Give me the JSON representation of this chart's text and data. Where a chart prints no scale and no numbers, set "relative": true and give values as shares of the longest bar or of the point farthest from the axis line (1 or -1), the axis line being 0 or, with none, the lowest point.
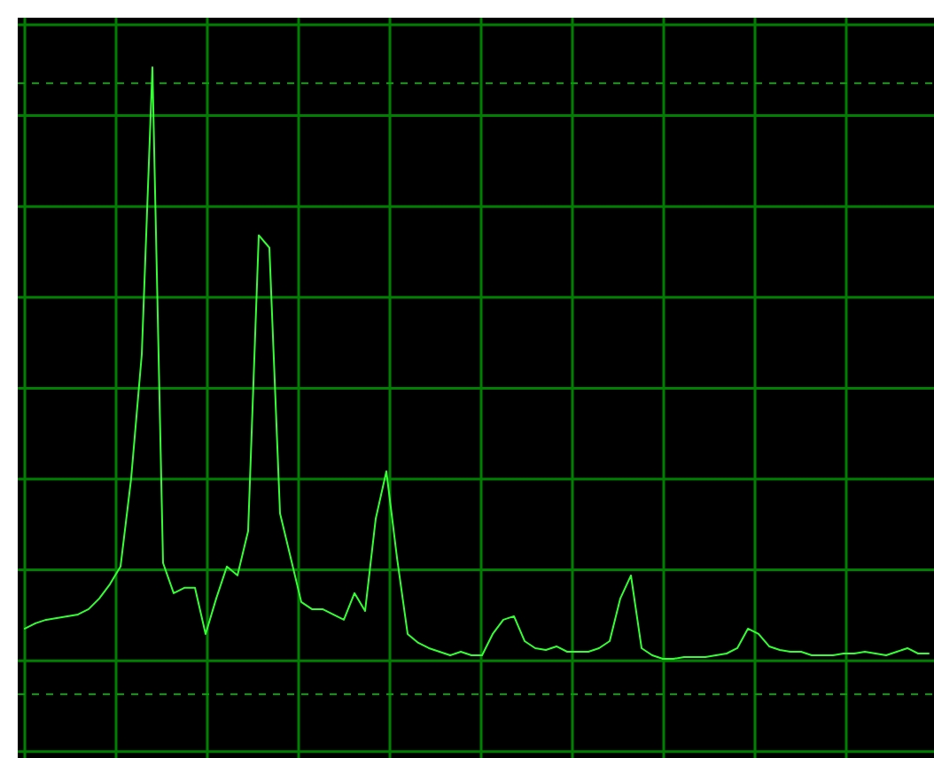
{
  "chart_data": {
    "type": "line",
    "relative": true,
    "grid": true,
    "categories": [
      null,
      null,
      null,
      null,
      null,
      null,
      null,
      null,
      null,
      null,
      null,
      null,
      null,
      null,
      null,
      null,
      null,
      null,
      null,
      null,
      null,
      null,
      null,
      null,
      null,
      null,
      null,
      null,
      null,
      null,
      null,
      null,
      null,
      null,
      null,
      null,
      null,
      null,
      null,
      null,
      null,
      null,
      null,
      null,
      null,
      null,
      null,
      null,
      null,
      null,
      null,
      null,
      null,
      null,
      null,
      null,
      null,
      null,
      null,
      null,
      null,
      null,
      null,
      null,
      null,
      null,
      null,
      null,
      null,
      null,
      null,
      null,
      null,
      null,
      null,
      null,
      null,
      null,
      null,
      null,
      null,
      null,
      null,
      null,
      null,
      null
    ],
    "series": [
      {
        "color": "#33ff33",
        "values": [
          0.051,
          0.06,
          0.066,
          0.069,
          0.072,
          0.075,
          0.084,
          0.102,
          0.126,
          0.156,
          0.305,
          0.515,
          1,
          0.162,
          0.111,
          0.12,
          0.12,
          0.042,
          0.102,
          0.156,
          0.141,
          0.216,
          0.716,
          0.695,
          0.246,
          0.171,
          0.096,
          0.084,
          0.084,
          0.075,
          0.066,
          0.111,
          0.081,
          0.237,
          0.317,
          0.171,
          0.042,
          0.027,
          0.018,
          0.012,
          0.006,
          0.012,
          0.006,
          0.006,
          0.042,
          0.066,
          0.072,
          0.03,
          0.018,
          0.015,
          0.021,
          0.012,
          0.012,
          0.012,
          0.018,
          0.03,
          0.102,
          0.141,
          0.018,
          0.006,
          0,
          0,
          0.003,
          0.003,
          0.003,
          0.006,
          0.009,
          0.018,
          0.051,
          0.042,
          0.021,
          0.015,
          0.012,
          0.012,
          0.006,
          0.006,
          0.006,
          0.009,
          0.009,
          0.012,
          0.009,
          0.006,
          0.012,
          0.018,
          0.009,
          0.009
        ]
      }
    ],
    "ref_lines": [
      {
        "axis": "y",
        "value": 0.973,
        "color": "#00a000",
        "line_style": "dashed"
      },
      {
        "axis": "y",
        "value": -0.06,
        "color": "#00a000",
        "line_style": "dashed"
      }
    ]
  }
}
